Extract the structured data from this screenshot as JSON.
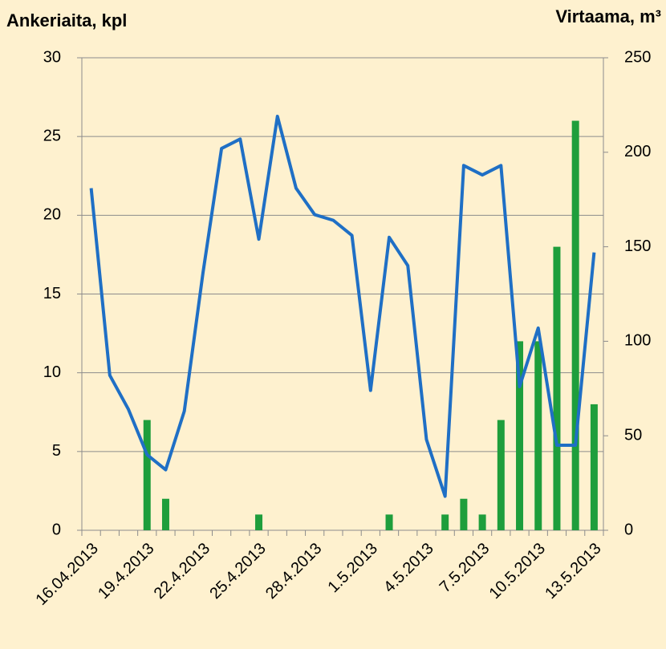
{
  "chart_data": {
    "type": "bar_line",
    "y_title": "Ankeriaita, kpl",
    "y2_title": "Virtaama, m³",
    "categories": [
      "16.04.2013",
      null,
      null,
      "19.4.2013",
      null,
      null,
      "22.4.2013",
      null,
      null,
      "25.4.2013",
      null,
      null,
      "28.4.2013",
      null,
      null,
      "1.5.2013",
      null,
      null,
      "4.5.2013",
      null,
      null,
      "7.5.2013",
      null,
      null,
      "10.5.2013",
      null,
      null,
      "13.5.2013"
    ],
    "series": [
      {
        "type": "bar",
        "color": "#1e9e3c",
        "values": [
          0,
          0,
          0,
          7,
          2,
          0,
          0,
          0,
          0,
          1,
          0,
          0,
          0,
          0,
          0,
          0,
          1,
          0,
          0,
          1,
          2,
          1,
          7,
          12,
          12,
          18,
          26,
          8
        ]
      },
      {
        "type": "line",
        "axis": "y2",
        "color": "#1f6fc5",
        "values": [
          181,
          82,
          64,
          40,
          32,
          63,
          136,
          202,
          207,
          154,
          219,
          181,
          167,
          164,
          156,
          74,
          155,
          140,
          48,
          18,
          193,
          188,
          193,
          76,
          107,
          45,
          45,
          147
        ]
      }
    ],
    "ylim": [
      0,
      30
    ],
    "yticks": [
      0,
      5,
      10,
      15,
      20,
      25,
      30
    ],
    "y2lim": [
      0,
      250
    ],
    "y2ticks": [
      0,
      50,
      100,
      150,
      200,
      250
    ],
    "grid": true
  }
}
